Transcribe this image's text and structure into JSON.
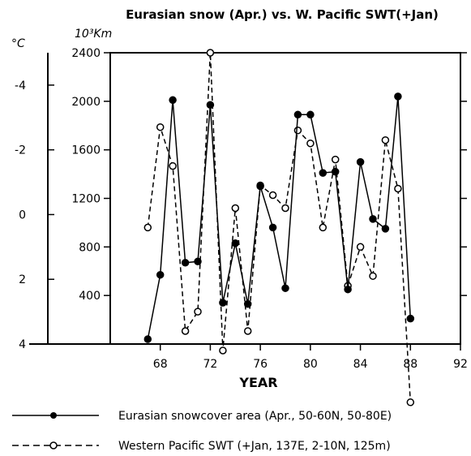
{
  "chart_data": {
    "type": "line",
    "title": "Eurasian snow (Apr.) vs. W. Pacific SWT(+Jan)",
    "xlabel": "YEAR",
    "x_ticks": [
      "68",
      "72",
      "76",
      "80",
      "84",
      "88",
      "92"
    ],
    "xlim": [
      64,
      92
    ],
    "left_axis": {
      "unit_label": "°C",
      "tick_labels": [
        "-4",
        "-2",
        "0",
        "2",
        "4"
      ],
      "tick_values": [
        -4,
        -2,
        0,
        2,
        4
      ],
      "range": [
        -5,
        4
      ],
      "inverted": true
    },
    "right_axis": {
      "unit_label": "10³Km",
      "tick_labels": [
        "2400",
        "2000",
        "1600",
        "1200",
        "800",
        "400"
      ],
      "tick_values": [
        2400,
        2000,
        1600,
        1200,
        800,
        400
      ],
      "range": [
        0,
        2400
      ]
    },
    "grid": false,
    "legend_placement": "bottom",
    "series": [
      {
        "name": "Eurasian snowcover area (Apr., 50-60N, 50-80E)",
        "axis": "right",
        "marker": "filled-circle",
        "line": "solid",
        "color": "#000000",
        "x": [
          67,
          68,
          69,
          70,
          71,
          72,
          73,
          74,
          75,
          76,
          77,
          78,
          79,
          80,
          81,
          82,
          83,
          84,
          85,
          86,
          87,
          88
        ],
        "values": [
          40,
          570,
          2010,
          670,
          680,
          1970,
          340,
          830,
          330,
          1300,
          960,
          460,
          1890,
          1890,
          1410,
          1420,
          450,
          1500,
          1030,
          950,
          2040,
          210
        ]
      },
      {
        "name": "Western Pacific SWT (+Jan, 137E, 2-10N, 125m)",
        "axis": "left",
        "marker": "open-circle",
        "line": "dashed",
        "color": "#000000",
        "x": [
          67,
          68,
          69,
          70,
          71,
          72,
          73,
          74,
          75,
          76,
          77,
          78,
          79,
          80,
          81,
          82,
          83,
          84,
          85,
          86,
          87,
          88
        ],
        "values": [
          0.4,
          -2.7,
          -1.5,
          3.6,
          3.0,
          -5.0,
          4.2,
          -0.2,
          3.6,
          -0.9,
          -0.6,
          -0.2,
          -2.6,
          -2.2,
          0.4,
          -1.7,
          2.2,
          1.0,
          1.9,
          -2.3,
          -0.8,
          5.8
        ]
      }
    ]
  }
}
